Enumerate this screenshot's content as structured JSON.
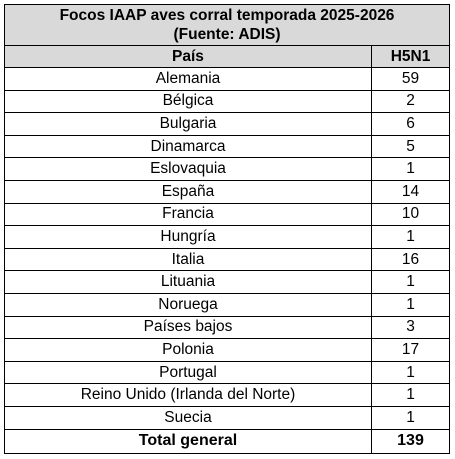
{
  "table": {
    "title_line1": "Focos IAAP aves corral temporada 2025-2026",
    "title_line2": "(Fuente: ADIS)",
    "header": {
      "country": "País",
      "value": "H5N1"
    },
    "rows": [
      {
        "country": "Alemania",
        "value": "59"
      },
      {
        "country": "Bélgica",
        "value": "2"
      },
      {
        "country": "Bulgaria",
        "value": "6"
      },
      {
        "country": "Dinamarca",
        "value": "5"
      },
      {
        "country": "Eslovaquia",
        "value": "1"
      },
      {
        "country": "España",
        "value": "14"
      },
      {
        "country": "Francia",
        "value": "10"
      },
      {
        "country": "Hungría",
        "value": "1"
      },
      {
        "country": "Italia",
        "value": "16"
      },
      {
        "country": "Lituania",
        "value": "1"
      },
      {
        "country": "Noruega",
        "value": "1"
      },
      {
        "country": "Países bajos",
        "value": "3"
      },
      {
        "country": "Polonia",
        "value": "17"
      },
      {
        "country": "Portugal",
        "value": "1"
      },
      {
        "country": "Reino Unido (Irlanda del Norte)",
        "value": "1"
      },
      {
        "country": "Suecia",
        "value": "1"
      }
    ],
    "total": {
      "label": "Total general",
      "value": "139"
    }
  },
  "colors": {
    "header_bg": "#d9d9d9",
    "border": "#000000"
  }
}
